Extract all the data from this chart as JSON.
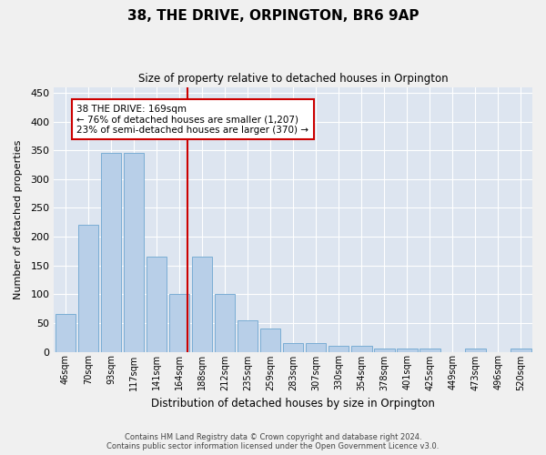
{
  "title": "38, THE DRIVE, ORPINGTON, BR6 9AP",
  "subtitle": "Size of property relative to detached houses in Orpington",
  "xlabel": "Distribution of detached houses by size in Orpington",
  "ylabel": "Number of detached properties",
  "categories": [
    "46sqm",
    "70sqm",
    "93sqm",
    "117sqm",
    "141sqm",
    "164sqm",
    "188sqm",
    "212sqm",
    "235sqm",
    "259sqm",
    "283sqm",
    "307sqm",
    "330sqm",
    "354sqm",
    "378sqm",
    "401sqm",
    "425sqm",
    "449sqm",
    "473sqm",
    "496sqm",
    "520sqm"
  ],
  "values": [
    65,
    220,
    345,
    345,
    165,
    100,
    165,
    100,
    55,
    40,
    15,
    15,
    10,
    10,
    5,
    5,
    5,
    0,
    5,
    0,
    5
  ],
  "bar_color": "#b8cfe8",
  "bar_edge_color": "#7aadd4",
  "ylim": [
    0,
    460
  ],
  "yticks": [
    0,
    50,
    100,
    150,
    200,
    250,
    300,
    350,
    400,
    450
  ],
  "vline_x_index": 5.35,
  "vline_color": "#cc0000",
  "property_label": "38 THE DRIVE: 169sqm",
  "annotation_line1": "← 76% of detached houses are smaller (1,207)",
  "annotation_line2": "23% of semi-detached houses are larger (370) →",
  "annotation_box_color": "#ffffff",
  "annotation_box_edge": "#cc0000",
  "background_color": "#dde5f0",
  "grid_color": "#ffffff",
  "fig_facecolor": "#f0f0f0",
  "footer_line1": "Contains HM Land Registry data © Crown copyright and database right 2024.",
  "footer_line2": "Contains public sector information licensed under the Open Government Licence v3.0."
}
